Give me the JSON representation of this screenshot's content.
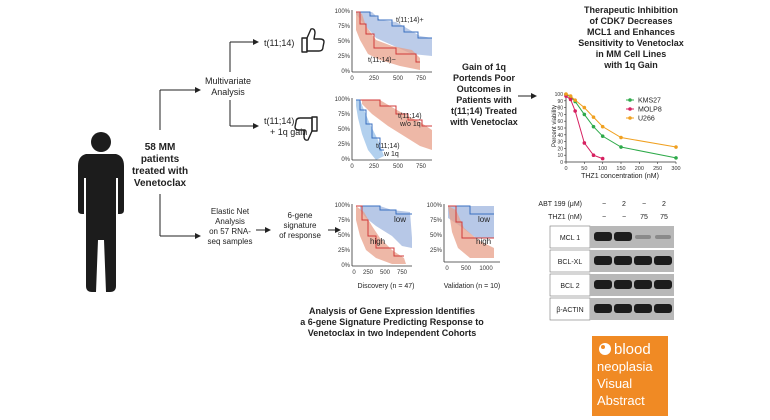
{
  "patient": {
    "label_lines": [
      "58 MM",
      "patients",
      "treated with",
      "Venetoclax"
    ]
  },
  "branches": {
    "multivariate": [
      "Multivariate",
      "Analysis"
    ],
    "elastic_net": [
      "Elastic Net",
      "Analysis",
      "on 57 RNA-",
      "seq samples"
    ],
    "signature": [
      "6-gene",
      "signature",
      "of response"
    ]
  },
  "groups": {
    "t1114": "t(11;14)",
    "t1114_gain": [
      "t(11;14)",
      "+ 1q gain"
    ]
  },
  "center_text": [
    "Gain of 1q",
    "Portends Poor",
    "Outcomes in",
    "Patients with",
    "t(11;14) Treated",
    "with Venetoclax"
  ],
  "right_title": [
    "Therapeutic Inhibition",
    "of CDK7 Decreases",
    "MCL1 and Enhances",
    "Sensitivity to Venetoclax",
    "in MM Cell Lines",
    "with 1q Gain"
  ],
  "bottom_text": [
    "Analysis of Gene Expression Identifies",
    "a 6-gene Signature Predicting Response to",
    "Venetoclax in two Independent Cohorts"
  ],
  "km_plots": {
    "y_ticks": [
      "100%",
      "75%",
      "50%",
      "25%",
      "0%"
    ],
    "y_ticks_short": [
      "100%",
      "75%",
      "50%",
      "25%"
    ],
    "x_ticks": [
      "0",
      "250",
      "500",
      "750"
    ],
    "x_ticks_val": [
      "0",
      "500",
      "1000"
    ],
    "plot1": {
      "upper": "t(11;14)+",
      "lower": "t(11;14)−"
    },
    "plot2": {
      "upper": [
        "t(11;14)",
        "w/o 1q"
      ],
      "lower": [
        "t(11;14)",
        "w 1q"
      ]
    },
    "plot3": {
      "upper": "low",
      "lower": "high",
      "caption": "Discovery (n = 47)"
    },
    "plot4": {
      "upper": "low",
      "lower": "high",
      "caption": "Validation (n = 10)"
    }
  },
  "chart_data": {
    "type": "line",
    "xlabel": "THZ1 concentration (nM)",
    "ylabel": "Percent viability",
    "x_ticks": [
      0,
      50,
      100,
      150,
      200,
      250,
      300
    ],
    "y_ticks": [
      0,
      10,
      20,
      30,
      40,
      50,
      60,
      70,
      80,
      90,
      100
    ],
    "xlim": [
      0,
      300
    ],
    "ylim": [
      0,
      100
    ],
    "legend_position": "top-right",
    "series": [
      {
        "name": "KMS27",
        "color": "#2eaa4a",
        "x": [
          0,
          12.5,
          25,
          50,
          75,
          100,
          150,
          300
        ],
        "y": [
          99,
          96,
          89,
          70,
          52,
          38,
          22,
          6
        ]
      },
      {
        "name": "MOLP8",
        "color": "#d62060",
        "x": [
          0,
          12.5,
          25,
          50,
          75,
          100
        ],
        "y": [
          97,
          92,
          75,
          28,
          10,
          5
        ]
      },
      {
        "name": "U266",
        "color": "#f0a020",
        "x": [
          0,
          12.5,
          25,
          50,
          75,
          100,
          150,
          300
        ],
        "y": [
          100,
          97,
          91,
          80,
          66,
          52,
          36,
          22
        ]
      }
    ]
  },
  "western": {
    "header_rows": [
      {
        "label": "ABT 199 (μM)",
        "values": [
          "−",
          "2",
          "−",
          "2"
        ]
      },
      {
        "label": "THZ1 (nM)",
        "values": [
          "−",
          "−",
          "75",
          "75"
        ]
      }
    ],
    "bands": [
      "MCL 1",
      "BCL-XL",
      "BCL 2",
      "β-ACTIN"
    ]
  },
  "badge": {
    "bg": "#f08a24",
    "line1": "blood",
    "line2": "neoplasia",
    "line3": "Visual",
    "line4": "Abstract"
  }
}
